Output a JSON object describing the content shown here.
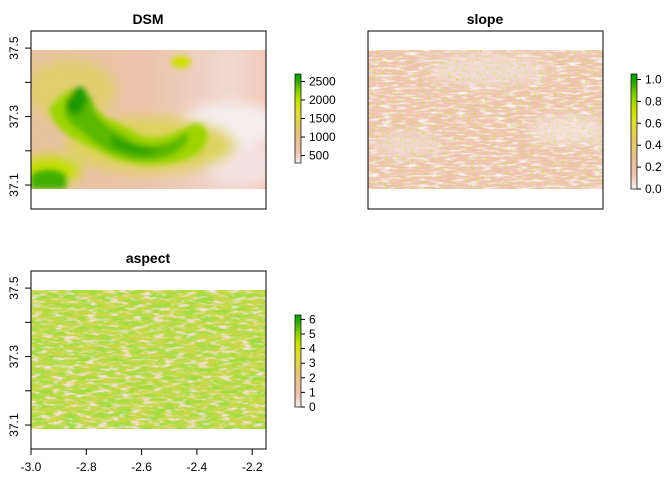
{
  "chart_data": [
    {
      "type": "heatmap",
      "title": "DSM",
      "xlim": [
        -3.0,
        -2.15
      ],
      "ylim": [
        37.03,
        37.55
      ],
      "raster_extent": {
        "x": [
          -3.0,
          -2.15
        ],
        "y": [
          37.09,
          37.49
        ]
      },
      "y_ticks": [
        37.1,
        37.2,
        37.3,
        37.4,
        37.5
      ],
      "y_tick_labels": [
        "37.1",
        "",
        "37.3",
        "",
        "37.5"
      ],
      "x_ticks": [
        -3.0,
        -2.8,
        -2.6,
        -2.4,
        -2.2
      ],
      "x_tick_labels": [],
      "legend": {
        "min": 300,
        "max": 2700,
        "ticks": [
          500,
          1000,
          1500,
          2000,
          2500
        ],
        "labels": [
          "500",
          "1000",
          "1500",
          "2000",
          "2500"
        ]
      }
    },
    {
      "type": "heatmap",
      "title": "slope",
      "xlim": [
        -3.0,
        -2.15
      ],
      "ylim": [
        37.03,
        37.55
      ],
      "raster_extent": {
        "x": [
          -3.0,
          -2.15
        ],
        "y": [
          37.09,
          37.49
        ]
      },
      "y_ticks": [],
      "y_tick_labels": [],
      "x_ticks": [],
      "x_tick_labels": [],
      "legend": {
        "min": 0.0,
        "max": 1.05,
        "ticks": [
          0.0,
          0.2,
          0.4,
          0.6,
          0.8,
          1.0
        ],
        "labels": [
          "0.0",
          "0.2",
          "0.4",
          "0.6",
          "0.8",
          "1.0"
        ]
      }
    },
    {
      "type": "heatmap",
      "title": "aspect",
      "xlim": [
        -3.0,
        -2.15
      ],
      "ylim": [
        37.03,
        37.55
      ],
      "raster_extent": {
        "x": [
          -3.0,
          -2.15
        ],
        "y": [
          37.09,
          37.49
        ]
      },
      "y_ticks": [
        37.1,
        37.2,
        37.3,
        37.4,
        37.5
      ],
      "y_tick_labels": [
        "37.1",
        "",
        "37.3",
        "",
        "37.5"
      ],
      "x_ticks": [
        -3.0,
        -2.8,
        -2.6,
        -2.4,
        -2.2
      ],
      "x_tick_labels": [
        "-3.0",
        "-2.8",
        "-2.6",
        "-2.4",
        "-2.2"
      ],
      "legend": {
        "min": 0,
        "max": 6.3,
        "ticks": [
          0,
          1,
          2,
          3,
          4,
          5,
          6
        ],
        "labels": [
          "0",
          "1",
          "2",
          "3",
          "4",
          "5",
          "6"
        ]
      }
    }
  ],
  "colors": {
    "terrain_ramp": [
      "#f2f2f2",
      "#efc3b0",
      "#e6c08c",
      "#e2cf59",
      "#dede35",
      "#c4e000",
      "#7fcc00",
      "#33a600",
      "#00a600"
    ],
    "axis": "#000000"
  }
}
